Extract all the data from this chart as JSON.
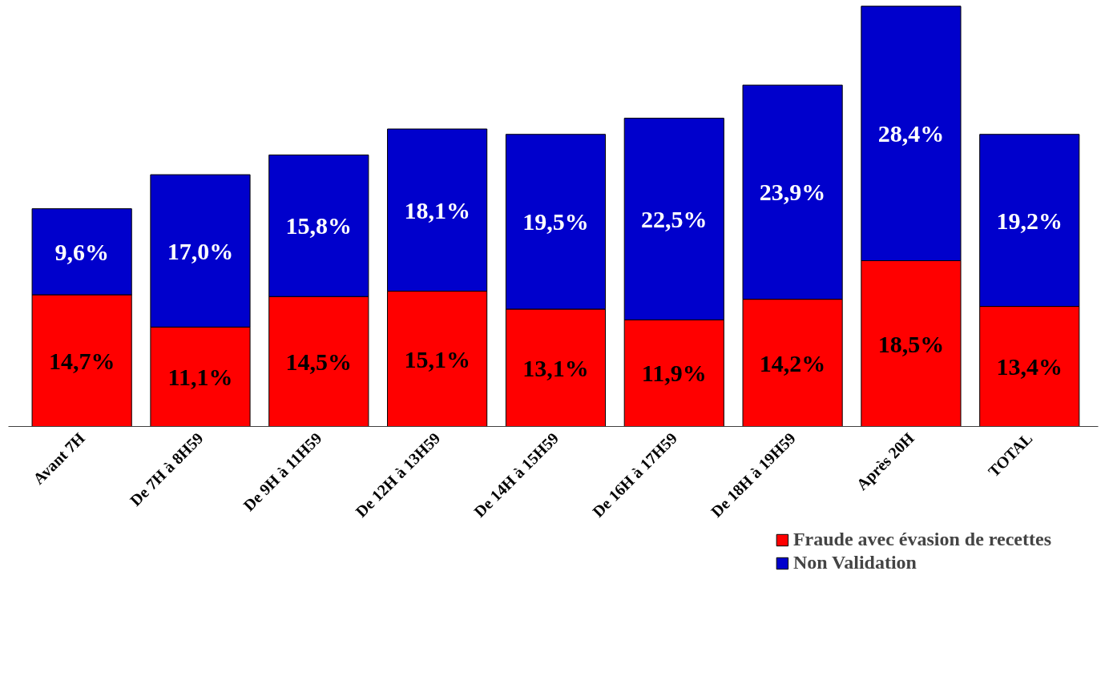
{
  "chart_data": {
    "type": "bar",
    "stacked": true,
    "legend": "bottom right",
    "grid": false,
    "tick_labels": "x",
    "categories": [
      "Avant 7H",
      "De 7H à 8H59",
      "De 9H à 11H59",
      "De 12H à 13H59",
      "De 14H à 15H59",
      "De 16H à 17H59",
      "De 18H à 19H59",
      "Après 20H",
      "TOTAL"
    ],
    "series": [
      {
        "name": "Fraude avec évasion de recettes",
        "color": "#ff0000",
        "values": [
          14.7,
          11.1,
          14.5,
          15.1,
          13.1,
          11.9,
          14.2,
          18.5,
          13.4
        ],
        "value_labels": [
          "14,7%",
          "11,1%",
          "14,5%",
          "15,1%",
          "13,1%",
          "11,9%",
          "14,2%",
          "18,5%",
          "13,4%"
        ]
      },
      {
        "name": "Non Validation",
        "color": "#0000cc",
        "values": [
          9.6,
          17.0,
          15.8,
          18.1,
          19.5,
          22.5,
          23.9,
          28.4,
          19.2
        ],
        "value_labels": [
          "9,6%",
          "17,0%",
          "15,8%",
          "18,1%",
          "19,5%",
          "22,5%",
          "23,9%",
          "28,4%",
          "19,2%"
        ]
      }
    ]
  }
}
